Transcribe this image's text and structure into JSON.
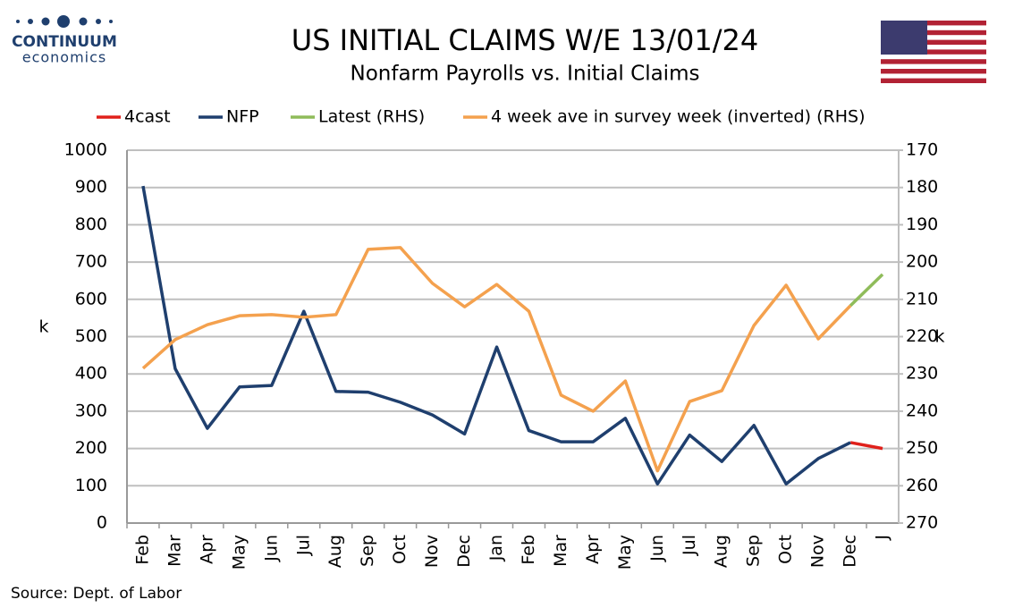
{
  "logo": {
    "name": "CONTINUUM",
    "tagline": "economics"
  },
  "chart_data": {
    "type": "line",
    "title": "US INITIAL CLAIMS W/E 13/01/24",
    "subtitle": "Nonfarm Payrolls vs. Initial Claims",
    "y_label": "k",
    "y2_label": "k",
    "source": "Source: Dept. of Labor",
    "categories": [
      "Feb",
      "Mar",
      "Apr",
      "May",
      "Jun",
      "Jul",
      "Aug",
      "Sep",
      "Oct",
      "Nov",
      "Dec",
      "Jan",
      "Feb",
      "Mar",
      "Apr",
      "May",
      "Jun",
      "Jul",
      "Aug",
      "Sep",
      "Oct",
      "Nov",
      "Dec",
      "J"
    ],
    "series": [
      {
        "name": "4cast",
        "color": "#e0201b",
        "values": [
          null,
          null,
          null,
          null,
          null,
          null,
          null,
          null,
          null,
          null,
          null,
          null,
          null,
          null,
          null,
          null,
          null,
          null,
          null,
          null,
          null,
          null,
          216,
          200
        ]
      },
      {
        "name": "NFP",
        "color": "#1f3f6e",
        "values": [
          904,
          414,
          254,
          365,
          369,
          568,
          353,
          351,
          324,
          290,
          239,
          472,
          248,
          218,
          218,
          281,
          105,
          236,
          165,
          262,
          105,
          173,
          216,
          null
        ]
      },
      {
        "name": "Latest (RHS)",
        "color": "#8fbc5a",
        "axis": "y2",
        "values": [
          null,
          null,
          null,
          null,
          null,
          null,
          null,
          null,
          null,
          null,
          null,
          null,
          null,
          null,
          null,
          null,
          null,
          null,
          null,
          null,
          null,
          null,
          211.7,
          203.3
        ]
      },
      {
        "name": "4 week ave in survey week (inverted) (RHS)",
        "color": "#f4a14e",
        "axis": "y2",
        "values": [
          228.5,
          220.8,
          216.8,
          214.4,
          214.1,
          214.8,
          214.1,
          196.6,
          196.1,
          205.7,
          212,
          206,
          213.2,
          235.7,
          240,
          231.9,
          256,
          237.4,
          234.5,
          217,
          206.2,
          220.6,
          211.7,
          null
        ]
      }
    ],
    "ylim": [
      0,
      1000
    ],
    "yticks": [
      0,
      100,
      200,
      300,
      400,
      500,
      600,
      700,
      800,
      900,
      1000
    ],
    "y2lim": [
      170,
      270
    ],
    "y2ticks": [
      170,
      180,
      190,
      200,
      210,
      220,
      230,
      240,
      250,
      260,
      270
    ],
    "y2_inverted": true,
    "grid": true,
    "legend": "top"
  }
}
